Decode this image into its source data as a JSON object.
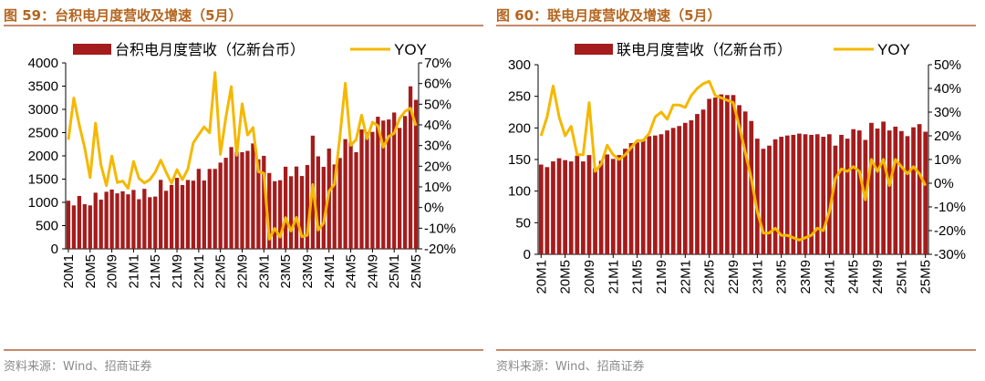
{
  "panels": [
    {
      "title": "图 59：台积电月度营收及增速（5月）",
      "source": "资料来源：Wind、招商证券"
    },
    {
      "title": "图 60：联电月度营收及增速（5月）",
      "source": "资料来源：Wind、招商证券"
    }
  ],
  "colors": {
    "bar": "#a51c1c",
    "line": "#f5b800",
    "title": "#b5651d",
    "rule": "#c6896a"
  },
  "chart_data": [
    {
      "type": "bar",
      "bar_legend": "台积电月度营收（亿新台币）",
      "line_legend": "YOY",
      "yticks_left": [
        "4000",
        "3500",
        "3000",
        "2500",
        "2000",
        "1500",
        "1000",
        "500",
        "0"
      ],
      "yticks_right": [
        "70%",
        "60%",
        "50%",
        "40%",
        "30%",
        "20%",
        "10%",
        "0%",
        "-10%",
        "-20%"
      ],
      "ylim_left": [
        0,
        4000
      ],
      "ylim_right": [
        -20,
        70
      ],
      "xtick_labels": [
        "20M1",
        "20M5",
        "20M9",
        "21M1",
        "21M5",
        "21M9",
        "22M1",
        "22M5",
        "22M9",
        "23M1",
        "23M5",
        "23M9",
        "24M1",
        "24M5",
        "24M9",
        "25M1",
        "25M5"
      ],
      "series": [
        {
          "name": "台积电月度营收（亿新台币）",
          "kind": "bar",
          "values": [
            1035,
            934,
            1137,
            960,
            935,
            1208,
            1058,
            1228,
            1275,
            1194,
            1238,
            1173,
            1267,
            1068,
            1291,
            1111,
            1125,
            1484,
            1249,
            1375,
            1528,
            1373,
            1481,
            1467,
            1721,
            1470,
            1719,
            1720,
            1855,
            1959,
            2189,
            2090,
            2079,
            2108,
            2267,
            1926,
            2001,
            1632,
            1454,
            1476,
            1767,
            1562,
            1771,
            1567,
            1803,
            2435,
            1990,
            1764,
            2157,
            1816,
            1954,
            2360,
            2296,
            2079,
            2568,
            2508,
            2517,
            2842,
            2760,
            2782,
            2933,
            2601,
            2857,
            3496,
            3205
          ]
        },
        {
          "name": "YOY",
          "kind": "line",
          "values": [
            32.8,
            53,
            40,
            29,
            14.5,
            40.8,
            20.6,
            10.6,
            24.9,
            12.1,
            12.8,
            9.3,
            22.3,
            14.1,
            11.9,
            13.5,
            17.1,
            22.9,
            17.1,
            11.8,
            18.3,
            13.5,
            18.6,
            31.3,
            35.3,
            39,
            36.2,
            65.3,
            25.7,
            43.6,
            58.5,
            25.3,
            50.2,
            35.1,
            38.7,
            17.3,
            16.6,
            -15.3,
            -10.1,
            -14.3,
            -4.9,
            -11.4,
            -4.8,
            -14.1,
            -13.4,
            11.1,
            -10.9,
            -7.6,
            7.9,
            11.2,
            34.3,
            60.1,
            30.1,
            32.9,
            44.7,
            33.3,
            41.3,
            39.6,
            29.2,
            34.4,
            35.9,
            43.1,
            46.5,
            48.1,
            39.6
          ]
        }
      ]
    },
    {
      "type": "bar",
      "bar_legend": "联电月度营收（亿新台币）",
      "line_legend": "YOY",
      "yticks_left": [
        "300",
        "250",
        "200",
        "150",
        "100",
        "50",
        "0"
      ],
      "yticks_right": [
        "50%",
        "40%",
        "30%",
        "20%",
        "10%",
        "0%",
        "-10%",
        "-20%",
        "-30%"
      ],
      "ylim_left": [
        0,
        300
      ],
      "ylim_right": [
        -30,
        50
      ],
      "xtick_labels": [
        "20M1",
        "20M5",
        "20M9",
        "21M1",
        "21M5",
        "21M9",
        "22M1",
        "22M5",
        "22M9",
        "23M1",
        "23M5",
        "23M9",
        "24M1",
        "24M5",
        "24M9",
        "25M1",
        "25M5"
      ],
      "series": [
        {
          "name": "联电月度营收（亿新台币）",
          "kind": "bar",
          "values": [
            142,
            138,
            147,
            152,
            149,
            147,
            156,
            147,
            157,
            136,
            148,
            158,
            151,
            157,
            167,
            176,
            177,
            182,
            187,
            188,
            190,
            196,
            200,
            203,
            208,
            212,
            222,
            229,
            246,
            248,
            253,
            252,
            252,
            236,
            226,
            211,
            183,
            167,
            172,
            182,
            186,
            188,
            189,
            191,
            190,
            189,
            190,
            186,
            190,
            172,
            189,
            183,
            198,
            196,
            181,
            208,
            199,
            210,
            196,
            202,
            195,
            187,
            201,
            206,
            194
          ]
        },
        {
          "name": "YOY",
          "kind": "line",
          "values": [
            20,
            28,
            41,
            28,
            20,
            24,
            12,
            12,
            34,
            5,
            8,
            16,
            12,
            10,
            12,
            15,
            18,
            18,
            21,
            28,
            30,
            27,
            33,
            33,
            32,
            37,
            40,
            42,
            43,
            37,
            36,
            35,
            34,
            24,
            13,
            2,
            -12,
            -21,
            -21,
            -19,
            -22,
            -22,
            -23,
            -24,
            -23,
            -22,
            -19,
            -20,
            -12,
            2,
            6,
            5,
            7,
            5,
            -7,
            10,
            5,
            10,
            -1,
            10,
            7,
            4,
            7,
            4,
            -1
          ]
        }
      ]
    }
  ]
}
